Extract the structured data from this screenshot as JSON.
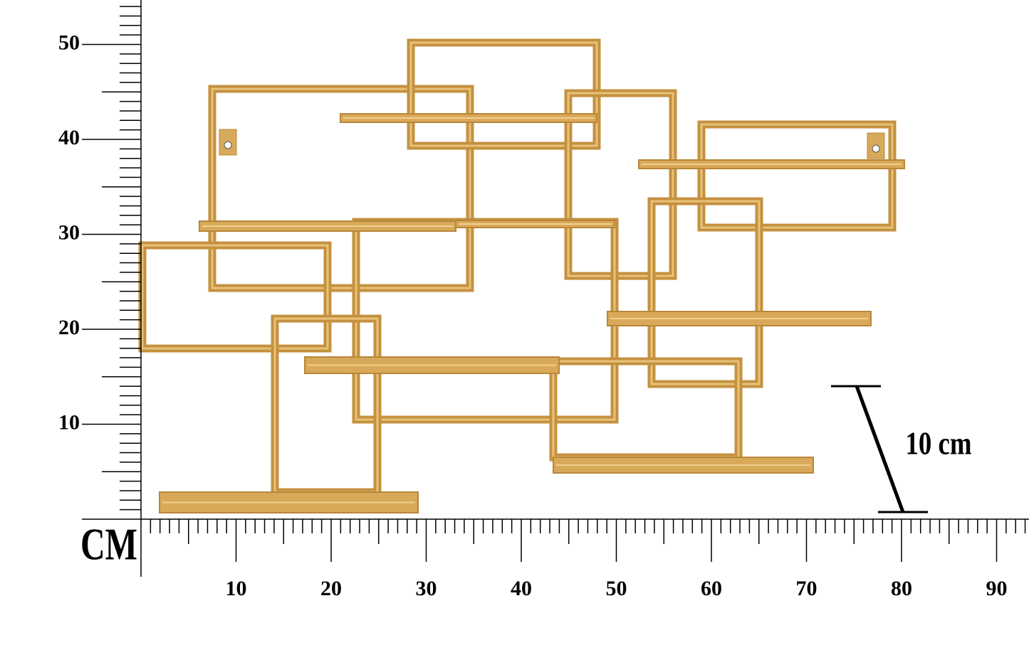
{
  "y_axis": {
    "labels": [
      "10",
      "20",
      "30",
      "40",
      "50"
    ]
  },
  "x_axis": {
    "labels": [
      "10",
      "20",
      "30",
      "40",
      "50",
      "60",
      "70",
      "80",
      "90"
    ]
  },
  "unit": "CM",
  "scale_note": "10 cm"
}
